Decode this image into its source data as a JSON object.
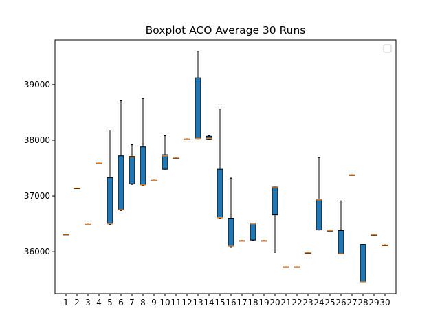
{
  "chart_data": {
    "type": "box",
    "title": "Boxplot ACO Average 30 Runs",
    "xlabel": "",
    "ylabel": "",
    "ylim": [
      35250,
      39800
    ],
    "yticks": [
      36000,
      37000,
      38000,
      39000
    ],
    "ytick_labels": [
      "36000",
      "37000",
      "38000",
      "39000"
    ],
    "categories": [
      "1",
      "2",
      "3",
      "4",
      "5",
      "6",
      "7",
      "8",
      "9",
      "10",
      "11",
      "12",
      "13",
      "14",
      "15",
      "16",
      "17",
      "18",
      "19",
      "20",
      "21",
      "22",
      "23",
      "24",
      "25",
      "26",
      "27",
      "28",
      "29",
      "30"
    ],
    "box_color": "#1f77b4",
    "median_color": "#ff7f0e",
    "legend": {
      "visible": true,
      "position": "upper right",
      "entries": []
    },
    "grid": false,
    "boxes": [
      {
        "label": "1",
        "whislo": 36310,
        "q1": 36310,
        "med": 36310,
        "q3": 36310,
        "whishi": 36310
      },
      {
        "label": "2",
        "whislo": 37140,
        "q1": 37140,
        "med": 37140,
        "q3": 37140,
        "whishi": 37140
      },
      {
        "label": "3",
        "whislo": 36490,
        "q1": 36490,
        "med": 36490,
        "q3": 36490,
        "whishi": 36490
      },
      {
        "label": "4",
        "whislo": 37590,
        "q1": 37590,
        "med": 37590,
        "q3": 37590,
        "whishi": 37590
      },
      {
        "label": "5",
        "whislo": 36490,
        "q1": 36500,
        "med": 36500,
        "q3": 37330,
        "whishi": 38170
      },
      {
        "label": "6",
        "whislo": 36740,
        "q1": 36750,
        "med": 36750,
        "q3": 37720,
        "whishi": 38710
      },
      {
        "label": "7",
        "whislo": 37210,
        "q1": 37220,
        "med": 37700,
        "q3": 37710,
        "whishi": 37920
      },
      {
        "label": "8",
        "whislo": 37190,
        "q1": 37200,
        "med": 37200,
        "q3": 37880,
        "whishi": 38750
      },
      {
        "label": "9",
        "whislo": 37280,
        "q1": 37280,
        "med": 37280,
        "q3": 37280,
        "whishi": 37280
      },
      {
        "label": "10",
        "whislo": 37480,
        "q1": 37480,
        "med": 37720,
        "q3": 37740,
        "whishi": 38080
      },
      {
        "label": "11",
        "whislo": 37680,
        "q1": 37680,
        "med": 37680,
        "q3": 37680,
        "whishi": 37680
      },
      {
        "label": "12",
        "whislo": 38020,
        "q1": 38020,
        "med": 38020,
        "q3": 38020,
        "whishi": 38020
      },
      {
        "label": "13",
        "whislo": 38030,
        "q1": 38030,
        "med": 38030,
        "q3": 39120,
        "whishi": 39590
      },
      {
        "label": "14",
        "whislo": 38020,
        "q1": 38020,
        "med": 38030,
        "q3": 38070,
        "whishi": 38080
      },
      {
        "label": "15",
        "whislo": 36600,
        "q1": 36610,
        "med": 36610,
        "q3": 37480,
        "whishi": 38560
      },
      {
        "label": "16",
        "whislo": 36090,
        "q1": 36100,
        "med": 36100,
        "q3": 36600,
        "whishi": 37320
      },
      {
        "label": "17",
        "whislo": 36200,
        "q1": 36200,
        "med": 36200,
        "q3": 36200,
        "whishi": 36200
      },
      {
        "label": "18",
        "whislo": 36200,
        "q1": 36210,
        "med": 36500,
        "q3": 36510,
        "whishi": 36510
      },
      {
        "label": "19",
        "whislo": 36200,
        "q1": 36200,
        "med": 36200,
        "q3": 36200,
        "whishi": 36200
      },
      {
        "label": "20",
        "whislo": 35990,
        "q1": 36660,
        "med": 37150,
        "q3": 37160,
        "whishi": 37160
      },
      {
        "label": "21",
        "whislo": 35730,
        "q1": 35730,
        "med": 35730,
        "q3": 35730,
        "whishi": 35730
      },
      {
        "label": "22",
        "whislo": 35730,
        "q1": 35730,
        "med": 35730,
        "q3": 35730,
        "whishi": 35730
      },
      {
        "label": "23",
        "whislo": 35980,
        "q1": 35980,
        "med": 35980,
        "q3": 35980,
        "whishi": 35980
      },
      {
        "label": "24",
        "whislo": 36390,
        "q1": 36390,
        "med": 36930,
        "q3": 36940,
        "whishi": 37690
      },
      {
        "label": "25",
        "whislo": 36380,
        "q1": 36380,
        "med": 36380,
        "q3": 36380,
        "whishi": 36380
      },
      {
        "label": "26",
        "whislo": 35960,
        "q1": 35960,
        "med": 35960,
        "q3": 36380,
        "whishi": 36910
      },
      {
        "label": "27",
        "whislo": 37380,
        "q1": 37380,
        "med": 37380,
        "q3": 37380,
        "whishi": 37380
      },
      {
        "label": "28",
        "whislo": 35460,
        "q1": 35460,
        "med": 35460,
        "q3": 36130,
        "whishi": 36130
      },
      {
        "label": "29",
        "whislo": 36300,
        "q1": 36300,
        "med": 36300,
        "q3": 36300,
        "whishi": 36300
      },
      {
        "label": "30",
        "whislo": 36120,
        "q1": 36120,
        "med": 36120,
        "q3": 36120,
        "whishi": 36120
      }
    ]
  }
}
